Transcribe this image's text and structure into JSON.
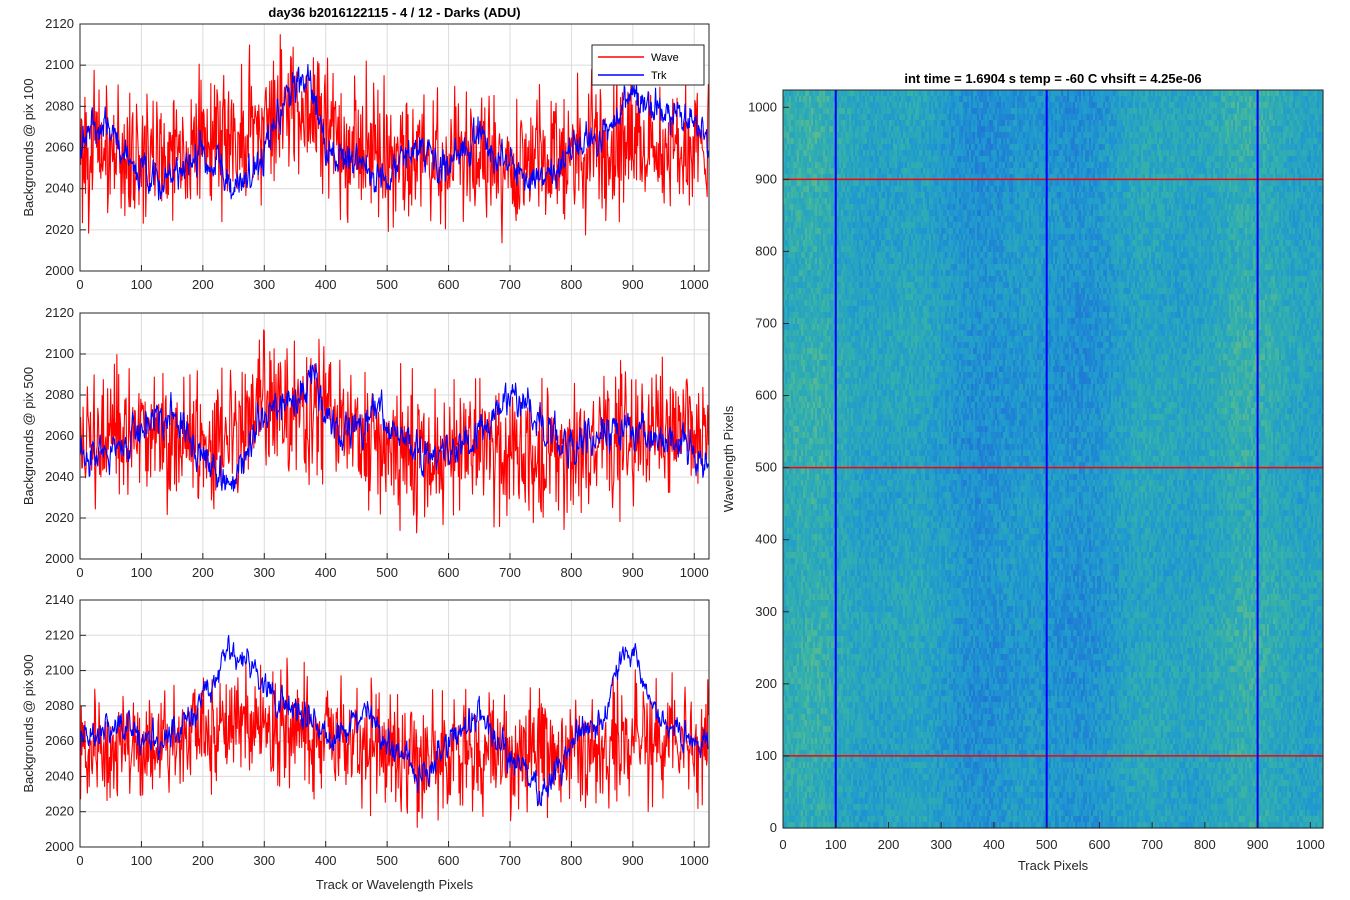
{
  "chart_data": [
    {
      "type": "line",
      "title": "day36 b2016122115 - 4 / 12 - Darks (ADU)",
      "xlabel": "",
      "ylabel": "Backgrounds @ pix 100",
      "xlim": [
        0,
        1024
      ],
      "ylim": [
        2000,
        2120
      ],
      "xticks": [
        0,
        100,
        200,
        300,
        400,
        500,
        600,
        700,
        800,
        900,
        1000
      ],
      "yticks": [
        2000,
        2020,
        2040,
        2060,
        2080,
        2100,
        2120
      ],
      "grid": true,
      "legend": "top-right",
      "series": [
        {
          "name": "Wave",
          "color": "#ff0000",
          "mean": 2058,
          "noise": 16,
          "knots": [
            [
              0,
              2060
            ],
            [
              100,
              2055
            ],
            [
              200,
              2062
            ],
            [
              300,
              2070
            ],
            [
              360,
              2085
            ],
            [
              420,
              2065
            ],
            [
              500,
              2058
            ],
            [
              600,
              2056
            ],
            [
              700,
              2052
            ],
            [
              800,
              2058
            ],
            [
              900,
              2062
            ],
            [
              1024,
              2060
            ]
          ]
        },
        {
          "name": "Trk",
          "color": "#0000ff",
          "mean": 2052,
          "noise": 6,
          "knots": [
            [
              0,
              2070
            ],
            [
              50,
              2065
            ],
            [
              100,
              2048
            ],
            [
              150,
              2045
            ],
            [
              200,
              2058
            ],
            [
              250,
              2040
            ],
            [
              300,
              2058
            ],
            [
              340,
              2085
            ],
            [
              370,
              2095
            ],
            [
              400,
              2062
            ],
            [
              450,
              2050
            ],
            [
              500,
              2046
            ],
            [
              550,
              2060
            ],
            [
              600,
              2048
            ],
            [
              650,
              2065
            ],
            [
              700,
              2050
            ],
            [
              750,
              2040
            ],
            [
              800,
              2058
            ],
            [
              850,
              2062
            ],
            [
              900,
              2085
            ],
            [
              950,
              2075
            ],
            [
              1000,
              2072
            ],
            [
              1024,
              2060
            ]
          ]
        }
      ]
    },
    {
      "type": "line",
      "title": "",
      "xlabel": "",
      "ylabel": "Backgrounds @ pix 500",
      "xlim": [
        0,
        1024
      ],
      "ylim": [
        2000,
        2120
      ],
      "xticks": [
        0,
        100,
        200,
        300,
        400,
        500,
        600,
        700,
        800,
        900,
        1000
      ],
      "yticks": [
        2000,
        2020,
        2040,
        2060,
        2080,
        2100,
        2120
      ],
      "grid": true,
      "series": [
        {
          "name": "Wave",
          "color": "#ff0000",
          "mean": 2058,
          "noise": 16,
          "knots": [
            [
              0,
              2055
            ],
            [
              100,
              2060
            ],
            [
              200,
              2058
            ],
            [
              300,
              2075
            ],
            [
              360,
              2072
            ],
            [
              420,
              2065
            ],
            [
              500,
              2052
            ],
            [
              600,
              2050
            ],
            [
              700,
              2055
            ],
            [
              800,
              2052
            ],
            [
              900,
              2060
            ],
            [
              1024,
              2065
            ]
          ]
        },
        {
          "name": "Trk",
          "color": "#0000ff",
          "mean": 2055,
          "noise": 6,
          "knots": [
            [
              0,
              2045
            ],
            [
              50,
              2052
            ],
            [
              100,
              2065
            ],
            [
              150,
              2072
            ],
            [
              200,
              2050
            ],
            [
              250,
              2038
            ],
            [
              300,
              2070
            ],
            [
              350,
              2078
            ],
            [
              380,
              2085
            ],
            [
              420,
              2060
            ],
            [
              450,
              2060
            ],
            [
              480,
              2075
            ],
            [
              520,
              2060
            ],
            [
              560,
              2050
            ],
            [
              600,
              2055
            ],
            [
              650,
              2060
            ],
            [
              700,
              2080
            ],
            [
              750,
              2068
            ],
            [
              800,
              2055
            ],
            [
              850,
              2062
            ],
            [
              900,
              2065
            ],
            [
              950,
              2060
            ],
            [
              1000,
              2050
            ],
            [
              1024,
              2045
            ]
          ]
        }
      ]
    },
    {
      "type": "line",
      "title": "",
      "xlabel": "Track or Wavelength Pixels",
      "ylabel": "Backgrounds @ pix 900",
      "xlim": [
        0,
        1024
      ],
      "ylim": [
        2000,
        2140
      ],
      "xticks": [
        0,
        100,
        200,
        300,
        400,
        500,
        600,
        700,
        800,
        900,
        1000
      ],
      "yticks": [
        2000,
        2020,
        2040,
        2060,
        2080,
        2100,
        2120,
        2140
      ],
      "grid": true,
      "series": [
        {
          "name": "Wave",
          "color": "#ff0000",
          "mean": 2058,
          "noise": 16,
          "knots": [
            [
              0,
              2055
            ],
            [
              100,
              2055
            ],
            [
              200,
              2062
            ],
            [
              260,
              2072
            ],
            [
              320,
              2068
            ],
            [
              400,
              2062
            ],
            [
              500,
              2055
            ],
            [
              600,
              2052
            ],
            [
              700,
              2050
            ],
            [
              800,
              2055
            ],
            [
              900,
              2058
            ],
            [
              1024,
              2060
            ]
          ]
        },
        {
          "name": "Trk",
          "color": "#0000ff",
          "mean": 2065,
          "noise": 6,
          "knots": [
            [
              0,
              2058
            ],
            [
              50,
              2070
            ],
            [
              100,
              2062
            ],
            [
              150,
              2060
            ],
            [
              200,
              2085
            ],
            [
              240,
              2112
            ],
            [
              280,
              2100
            ],
            [
              320,
              2082
            ],
            [
              360,
              2075
            ],
            [
              420,
              2060
            ],
            [
              470,
              2080
            ],
            [
              500,
              2058
            ],
            [
              560,
              2040
            ],
            [
              600,
              2060
            ],
            [
              650,
              2075
            ],
            [
              700,
              2050
            ],
            [
              750,
              2032
            ],
            [
              800,
              2060
            ],
            [
              850,
              2072
            ],
            [
              890,
              2115
            ],
            [
              940,
              2075
            ],
            [
              1000,
              2058
            ],
            [
              1024,
              2062
            ]
          ]
        }
      ]
    },
    {
      "type": "heatmap",
      "title": "int time = 1.6904 s    temp = -60 C    vhsift = 4.25e-06",
      "xlabel": "Track Pixels",
      "ylabel": "Wavelength Pixels",
      "xlim": [
        0,
        1024
      ],
      "ylim": [
        0,
        1024
      ],
      "xticks": [
        0,
        100,
        200,
        300,
        400,
        500,
        600,
        700,
        800,
        900,
        1000
      ],
      "yticks": [
        0,
        100,
        200,
        300,
        400,
        500,
        600,
        700,
        800,
        900,
        1000
      ],
      "colormap": [
        "#1f6fd6",
        "#1f9ad0",
        "#35b2a9",
        "#8fc46a"
      ],
      "marker_lines": {
        "vertical": {
          "color": "#0000ff",
          "x": [
            100,
            500,
            900
          ]
        },
        "horizontal": {
          "color": "#ff0000",
          "y": [
            100,
            500,
            900
          ]
        }
      }
    }
  ]
}
